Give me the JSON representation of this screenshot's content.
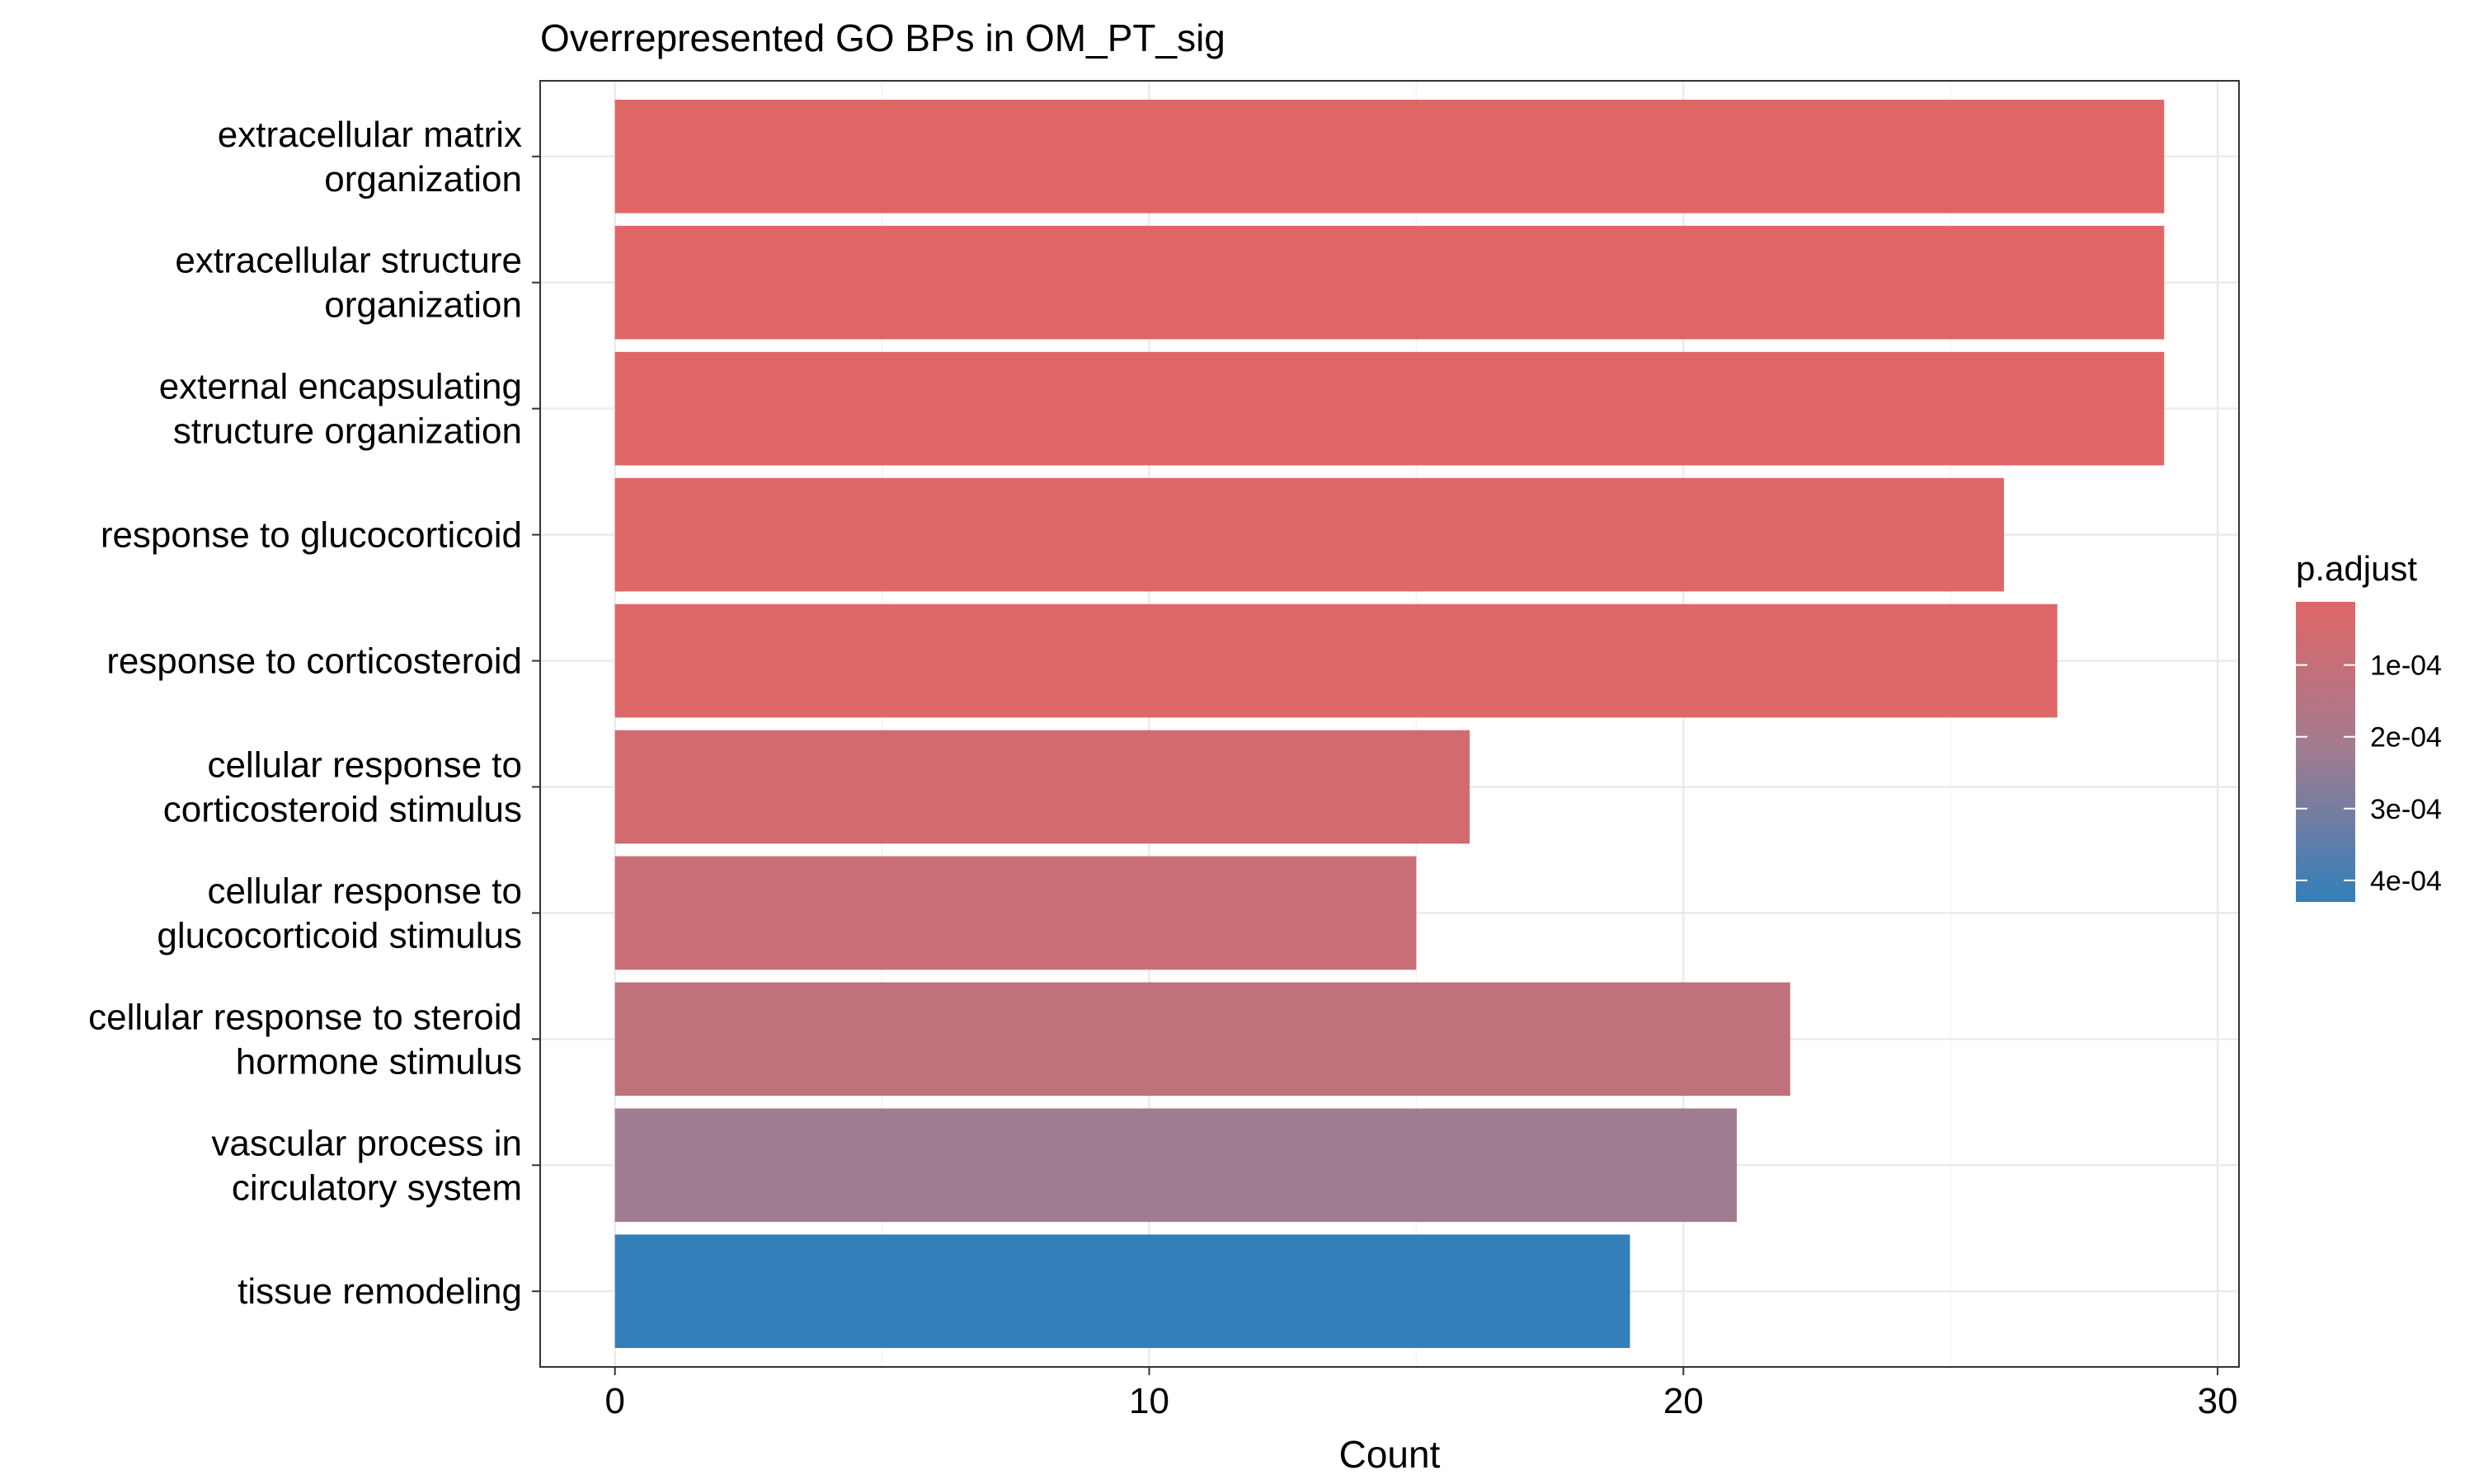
{
  "chart_data": {
    "type": "bar",
    "orientation": "horizontal",
    "title": "Overrepresented GO BPs in OM_PT_sig",
    "xlabel": "Count",
    "ylabel": "",
    "xlim": [
      -1.4,
      30.4
    ],
    "x_ticks": [
      0,
      10,
      20,
      30
    ],
    "grid": true,
    "categories": [
      [
        "extracellular matrix",
        "organization"
      ],
      [
        "extracellular structure",
        "organization"
      ],
      [
        "external encapsulating",
        "structure organization"
      ],
      [
        "response to glucocorticoid"
      ],
      [
        "response to corticosteroid"
      ],
      [
        "cellular response to",
        "corticosteroid stimulus"
      ],
      [
        "cellular response to",
        "glucocorticoid stimulus"
      ],
      [
        "cellular response to steroid",
        "hormone stimulus"
      ],
      [
        "vascular process in",
        "circulatory system"
      ],
      [
        "tissue remodeling"
      ]
    ],
    "values": [
      29,
      29,
      29,
      26,
      27,
      16,
      15,
      22,
      21,
      19
    ],
    "p_adjust": [
      1.2e-05,
      1.2e-05,
      1.2e-05,
      2e-05,
      2e-05,
      6e-05,
      8.5e-05,
      0.00012,
      0.00022,
      0.00043
    ],
    "legend": {
      "title": "p.adjust",
      "position": "right",
      "ticks": [
        0.0001,
        0.0002,
        0.0003,
        0.0004
      ],
      "tick_labels": [
        "1e-04",
        "2e-04",
        "3e-04",
        "4e-04"
      ],
      "range": [
        1.2e-05,
        0.00043
      ],
      "low_color": "#E06666",
      "high_color": "#337FBA"
    }
  }
}
